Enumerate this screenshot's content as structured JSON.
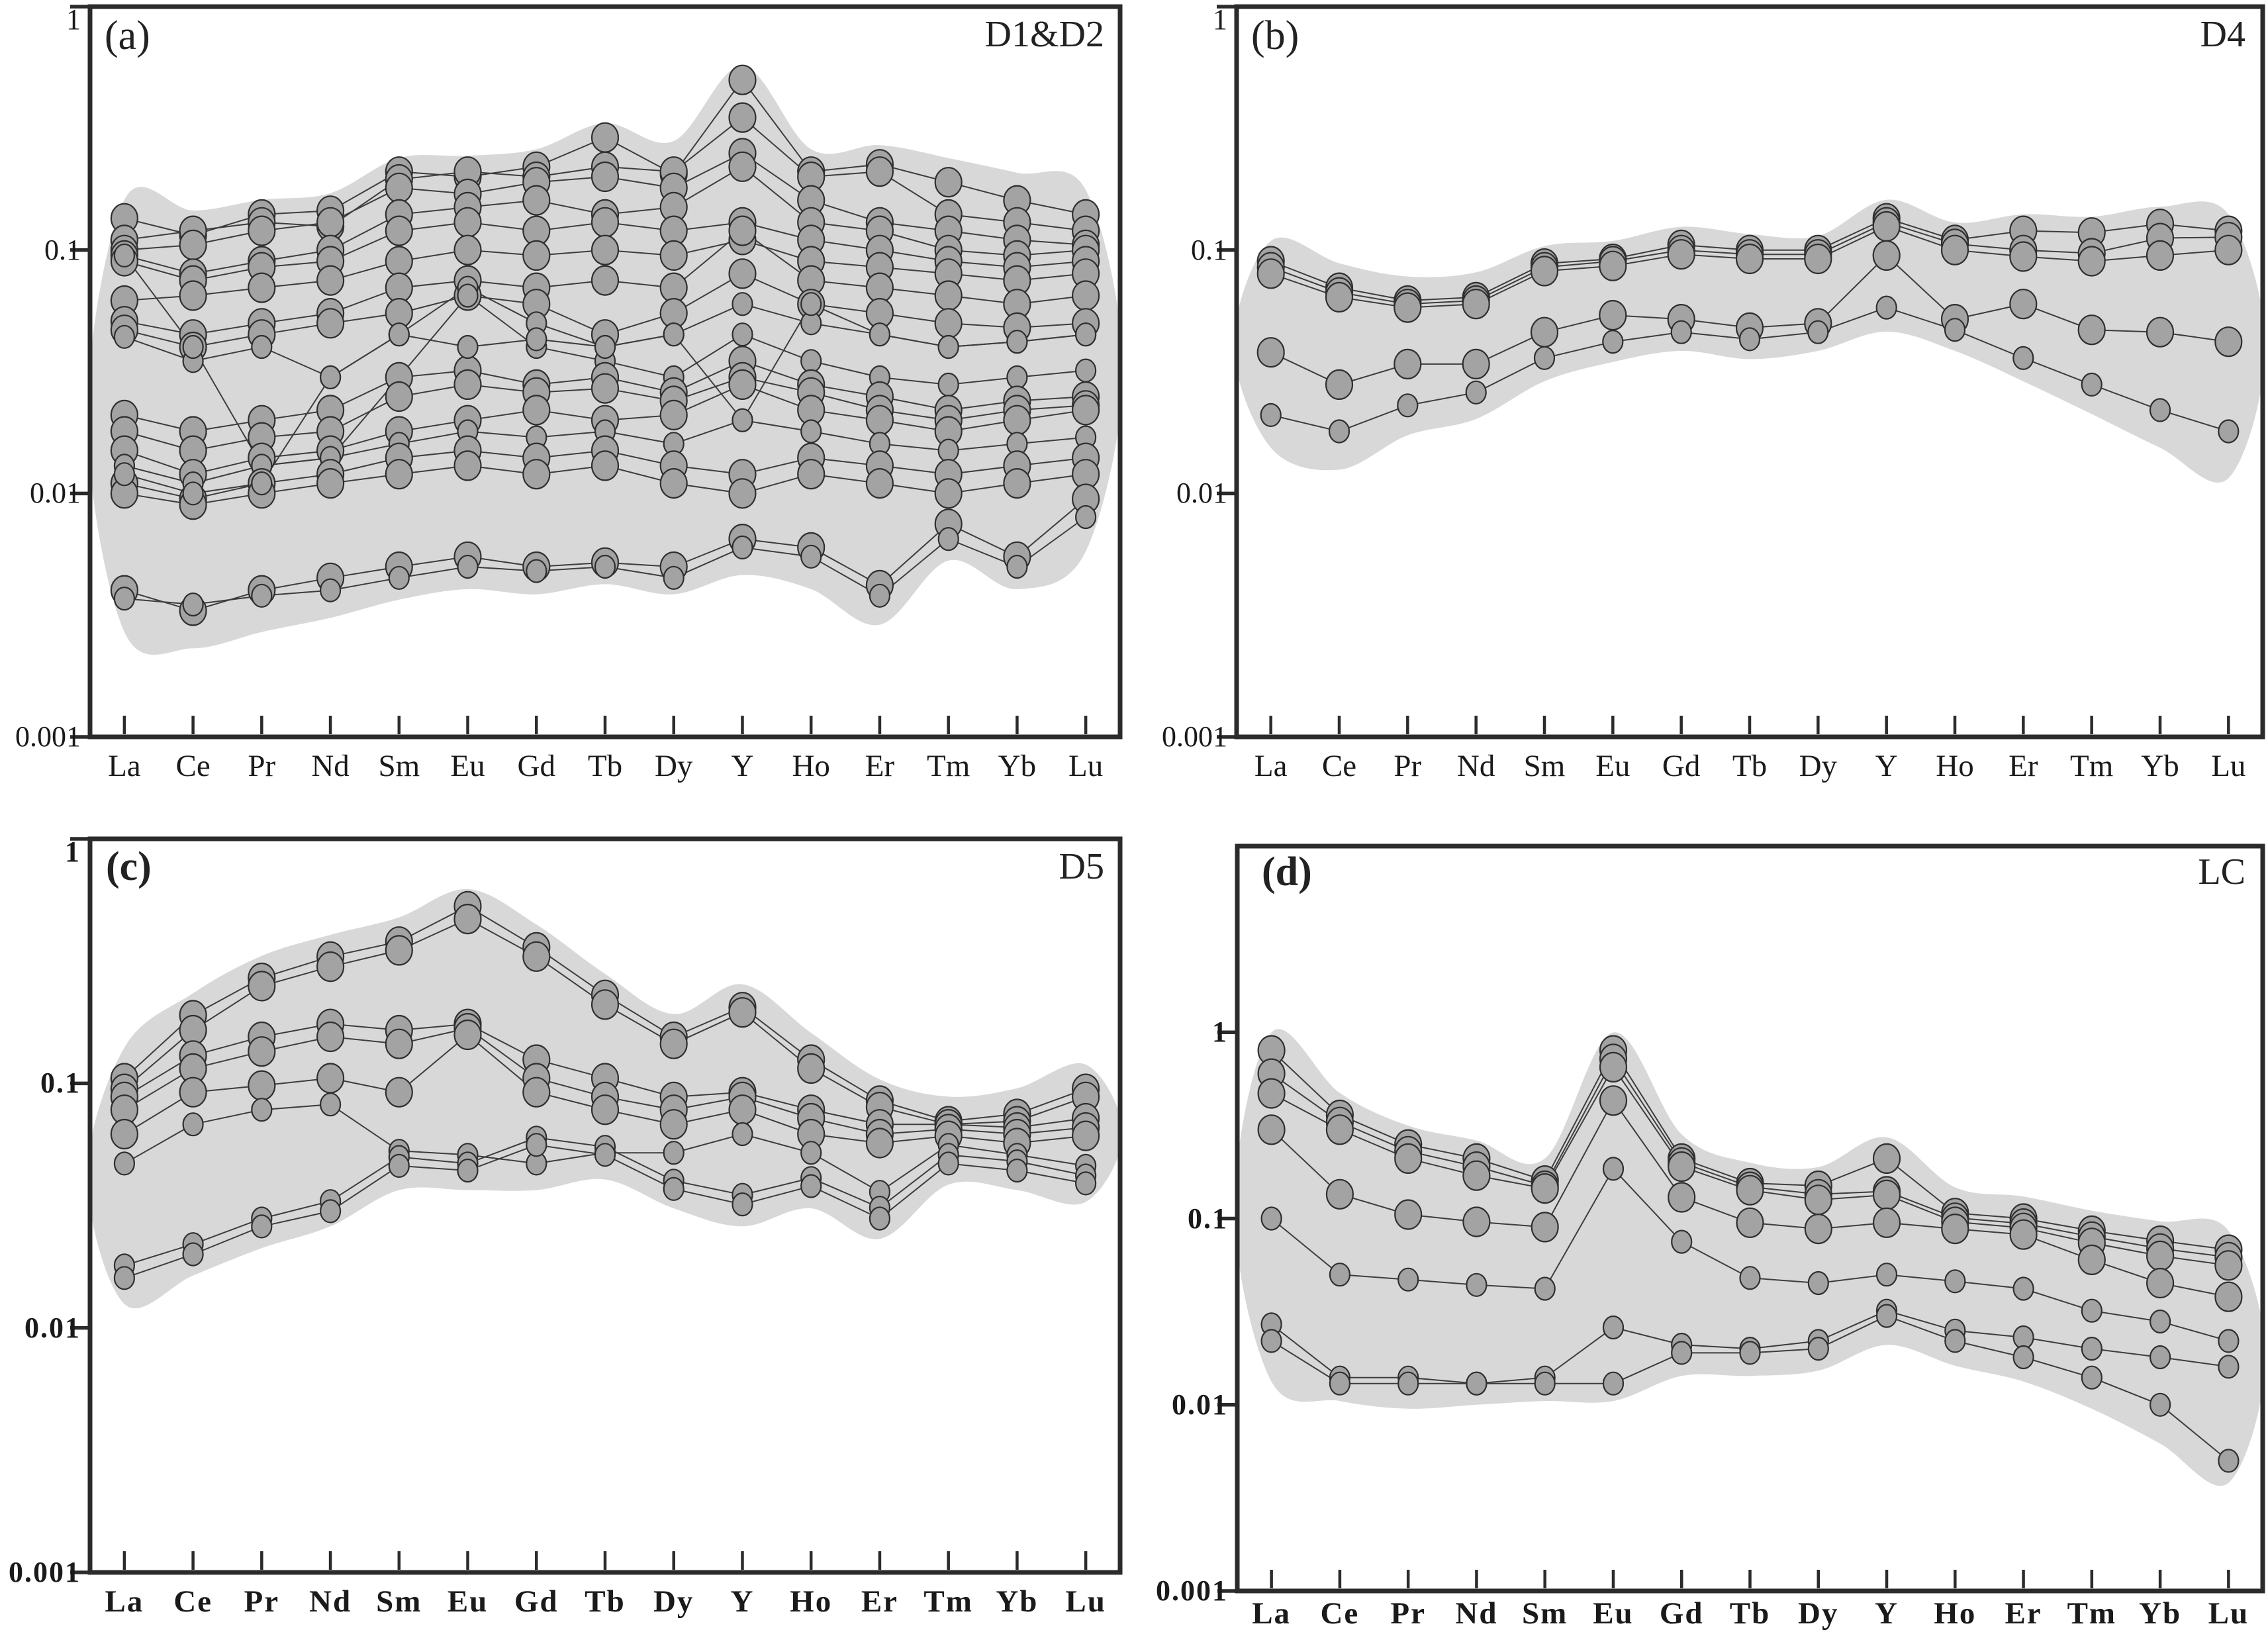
{
  "colors": {
    "background": "#ffffff",
    "envelope": "#d8d8d8",
    "marker_fill": "#a3a3a3",
    "marker_stroke": "#2f2f2f",
    "line": "#3d3d3d",
    "axis": "#2b2b2b",
    "text": "#1a1a1a"
  },
  "categories": [
    "La",
    "Ce",
    "Pr",
    "Nd",
    "Sm",
    "Eu",
    "Gd",
    "Tb",
    "Dy",
    "Y",
    "Ho",
    "Er",
    "Tm",
    "Yb",
    "Lu"
  ],
  "chart_data": [
    {
      "type": "line",
      "panel_letter": "(a)",
      "group_label": "D1&D2",
      "y_axis": {
        "scale": "log",
        "range_top": 1,
        "range_bottom": 0.001,
        "tick_values": [
          1,
          0.1,
          0.01,
          0.001
        ],
        "tick_labels": [
          "1",
          "0.1",
          "0.01",
          "0.001"
        ]
      },
      "envelope": {
        "upper": [
          0.155,
          0.14,
          0.155,
          0.165,
          0.23,
          0.235,
          0.25,
          0.32,
          0.27,
          0.55,
          0.25,
          0.26,
          0.23,
          0.2,
          0.17
        ],
        "lower": [
          0.0028,
          0.0024,
          0.0028,
          0.0032,
          0.0038,
          0.0042,
          0.004,
          0.0044,
          0.004,
          0.0048,
          0.0042,
          0.003,
          0.0055,
          0.0042,
          0.006
        ]
      },
      "series": [
        {
          "marker": "large",
          "values": [
            0.135,
            0.115,
            0.14,
            0.145,
            0.21,
            0.2,
            0.22,
            0.29,
            0.205,
            0.5,
            0.21,
            0.225,
            0.19,
            0.16,
            0.14
          ]
        },
        {
          "marker": "large",
          "values": [
            0.11,
            0.12,
            0.13,
            0.125,
            0.195,
            0.21,
            0.2,
            0.22,
            0.21,
            0.35,
            0.2,
            0.21,
            0.14,
            0.13,
            0.12
          ]
        },
        {
          "marker": "large",
          "values": [
            0.1,
            0.105,
            0.12,
            0.13,
            0.18,
            0.17,
            0.19,
            0.2,
            0.18,
            0.25,
            0.16,
            0.13,
            0.12,
            0.11,
            0.105
          ]
        },
        {
          "marker": "large",
          "values": [
            0.095,
            0.08,
            0.09,
            0.1,
            0.14,
            0.15,
            0.16,
            0.14,
            0.15,
            0.22,
            0.13,
            0.12,
            0.1,
            0.095,
            0.1
          ]
        },
        {
          "marker": "large",
          "values": [
            0.09,
            0.075,
            0.085,
            0.09,
            0.12,
            0.13,
            0.12,
            0.13,
            0.12,
            0.13,
            0.11,
            0.1,
            0.09,
            0.085,
            0.09
          ]
        },
        {
          "marker": "large",
          "values": [
            0.062,
            0.065,
            0.07,
            0.075,
            0.09,
            0.1,
            0.095,
            0.1,
            0.095,
            0.11,
            0.09,
            0.085,
            0.08,
            0.075,
            0.08
          ]
        },
        {
          "marker": "large",
          "values": [
            0.051,
            0.045,
            0.05,
            0.055,
            0.07,
            0.075,
            0.07,
            0.075,
            0.07,
            0.12,
            0.075,
            0.07,
            0.065,
            0.06,
            0.065
          ]
        },
        {
          "marker": "large",
          "values": [
            0.047,
            0.04,
            0.045,
            0.05,
            0.055,
            0.065,
            0.06,
            0.045,
            0.055,
            0.08,
            0.06,
            0.055,
            0.05,
            0.048,
            0.05
          ]
        },
        {
          "marker": "small",
          "values": [
            0.044,
            0.035,
            0.04,
            0.03,
            0.045,
            0.07,
            0.05,
            0.04,
            0.045,
            0.06,
            0.05,
            0.045,
            0.04,
            0.042,
            0.045
          ]
        },
        {
          "marker": "small",
          "values": [
            0.095,
            0.04,
            0.013,
            0.014,
            0.03,
            0.065,
            0.04,
            0.035,
            0.03,
            0.045,
            0.035,
            0.03,
            0.028,
            0.03,
            0.032
          ]
        },
        {
          "marker": "large",
          "values": [
            0.021,
            0.018,
            0.02,
            0.022,
            0.03,
            0.032,
            0.028,
            0.03,
            0.026,
            0.035,
            0.028,
            0.025,
            0.022,
            0.024,
            0.025
          ]
        },
        {
          "marker": "large",
          "values": [
            0.018,
            0.015,
            0.017,
            0.018,
            0.025,
            0.028,
            0.026,
            0.027,
            0.024,
            0.03,
            0.026,
            0.022,
            0.02,
            0.022,
            0.023
          ]
        },
        {
          "marker": "large",
          "values": [
            0.015,
            0.012,
            0.014,
            0.015,
            0.018,
            0.02,
            0.022,
            0.02,
            0.021,
            0.028,
            0.022,
            0.02,
            0.018,
            0.02,
            0.022
          ]
        },
        {
          "marker": "small",
          "values": [
            0.013,
            0.011,
            0.013,
            0.014,
            0.016,
            0.018,
            0.017,
            0.018,
            0.016,
            0.02,
            0.018,
            0.016,
            0.015,
            0.016,
            0.017
          ]
        },
        {
          "marker": "large",
          "values": [
            0.011,
            0.0095,
            0.011,
            0.012,
            0.014,
            0.015,
            0.014,
            0.015,
            0.013,
            0.012,
            0.014,
            0.013,
            0.012,
            0.013,
            0.014
          ]
        },
        {
          "marker": "large",
          "values": [
            0.01,
            0.009,
            0.01,
            0.011,
            0.012,
            0.013,
            0.012,
            0.013,
            0.011,
            0.01,
            0.012,
            0.011,
            0.01,
            0.011,
            0.012
          ]
        },
        {
          "marker": "small",
          "values": [
            0.012,
            0.01,
            0.011,
            0.03,
            0.045,
            0.04,
            0.043,
            0.04,
            0.045,
            0.02,
            0.06,
            0.045,
            0.04,
            0.042,
            0.045
          ]
        },
        {
          "marker": "large",
          "values": [
            0.004,
            0.0033,
            0.004,
            0.0045,
            0.005,
            0.0055,
            0.005,
            0.0052,
            0.005,
            0.0065,
            0.006,
            0.0042,
            0.0075,
            0.0055,
            0.0095
          ]
        },
        {
          "marker": "small",
          "values": [
            0.0037,
            0.0035,
            0.0038,
            0.004,
            0.0045,
            0.005,
            0.0048,
            0.005,
            0.0045,
            0.006,
            0.0055,
            0.0038,
            0.0065,
            0.005,
            0.008
          ]
        }
      ]
    },
    {
      "type": "line",
      "panel_letter": "(b)",
      "group_label": "D4",
      "y_axis": {
        "scale": "log",
        "range_top": 1,
        "range_bottom": 0.001,
        "tick_values": [
          1,
          0.1,
          0.01,
          0.001
        ],
        "tick_labels": [
          "1",
          "0.1",
          "0.01",
          "0.001"
        ]
      },
      "envelope": {
        "upper": [
          0.105,
          0.085,
          0.075,
          0.078,
          0.1,
          0.105,
          0.12,
          0.112,
          0.11,
          0.155,
          0.125,
          0.135,
          0.132,
          0.145,
          0.135
        ],
        "lower": [
          0.016,
          0.013,
          0.018,
          0.021,
          0.03,
          0.036,
          0.04,
          0.037,
          0.04,
          0.048,
          0.04,
          0.03,
          0.022,
          0.016,
          0.012
        ]
      },
      "series": [
        {
          "marker": "large",
          "values": [
            0.09,
            0.07,
            0.062,
            0.064,
            0.088,
            0.092,
            0.105,
            0.1,
            0.1,
            0.135,
            0.11,
            0.12,
            0.118,
            0.128,
            0.12
          ]
        },
        {
          "marker": "large",
          "values": [
            0.085,
            0.067,
            0.06,
            0.062,
            0.085,
            0.09,
            0.1,
            0.096,
            0.096,
            0.13,
            0.106,
            0.1,
            0.097,
            0.112,
            0.113
          ]
        },
        {
          "marker": "large",
          "values": [
            0.08,
            0.064,
            0.058,
            0.06,
            0.082,
            0.086,
            0.096,
            0.092,
            0.092,
            0.125,
            0.1,
            0.094,
            0.09,
            0.095,
            0.1
          ]
        },
        {
          "marker": "large",
          "values": [
            0.038,
            0.028,
            0.034,
            0.034,
            0.046,
            0.054,
            0.052,
            0.048,
            0.05,
            0.095,
            0.052,
            0.06,
            0.047,
            0.046,
            0.042
          ]
        },
        {
          "marker": "small",
          "values": [
            0.021,
            0.018,
            0.023,
            0.026,
            0.036,
            0.042,
            0.046,
            0.043,
            0.046,
            0.058,
            0.047,
            0.036,
            0.028,
            0.022,
            0.018
          ]
        }
      ]
    },
    {
      "type": "line",
      "panel_letter": "(c)",
      "group_label": "D5",
      "y_axis": {
        "scale": "log",
        "range_top": 1,
        "range_bottom": 0.001,
        "tick_values": [
          1,
          0.1,
          0.01,
          0.001
        ],
        "tick_labels": [
          "1",
          "0.1",
          "0.01",
          "0.001"
        ]
      },
      "envelope": {
        "upper": [
          0.135,
          0.225,
          0.32,
          0.39,
          0.46,
          0.6,
          0.43,
          0.27,
          0.185,
          0.245,
          0.155,
          0.1,
          0.085,
          0.092,
          0.115
        ],
        "lower": [
          0.013,
          0.017,
          0.022,
          0.027,
          0.038,
          0.038,
          0.038,
          0.042,
          0.032,
          0.027,
          0.032,
          0.024,
          0.04,
          0.038,
          0.034
        ]
      },
      "series": [
        {
          "marker": "large",
          "values": [
            0.105,
            0.19,
            0.27,
            0.33,
            0.38,
            0.53,
            0.36,
            0.23,
            0.155,
            0.205,
            0.125,
            0.085,
            0.07,
            0.075,
            0.095
          ]
        },
        {
          "marker": "large",
          "values": [
            0.095,
            0.165,
            0.25,
            0.3,
            0.35,
            0.47,
            0.33,
            0.21,
            0.145,
            0.195,
            0.115,
            0.08,
            0.068,
            0.07,
            0.088
          ]
        },
        {
          "marker": "large",
          "values": [
            0.088,
            0.13,
            0.155,
            0.175,
            0.165,
            0.175,
            0.125,
            0.105,
            0.088,
            0.092,
            0.078,
            0.068,
            0.068,
            0.066,
            0.072
          ]
        },
        {
          "marker": "large",
          "values": [
            0.078,
            0.115,
            0.135,
            0.155,
            0.145,
            0.168,
            0.105,
            0.088,
            0.078,
            0.088,
            0.072,
            0.062,
            0.065,
            0.062,
            0.066
          ]
        },
        {
          "marker": "large",
          "values": [
            0.062,
            0.092,
            0.098,
            0.105,
            0.092,
            0.158,
            0.092,
            0.078,
            0.068,
            0.078,
            0.062,
            0.057,
            0.061,
            0.057,
            0.061
          ]
        },
        {
          "marker": "small",
          "values": [
            0.047,
            0.068,
            0.078,
            0.082,
            0.053,
            0.051,
            0.047,
            0.052,
            0.052,
            0.062,
            0.052,
            0.036,
            0.056,
            0.051,
            0.046
          ]
        },
        {
          "marker": "small",
          "values": [
            0.018,
            0.022,
            0.028,
            0.033,
            0.05,
            0.047,
            0.06,
            0.055,
            0.04,
            0.035,
            0.041,
            0.031,
            0.051,
            0.048,
            0.042
          ]
        },
        {
          "marker": "small",
          "values": [
            0.016,
            0.02,
            0.026,
            0.03,
            0.046,
            0.044,
            0.056,
            0.051,
            0.037,
            0.032,
            0.038,
            0.028,
            0.047,
            0.044,
            0.039
          ]
        }
      ]
    },
    {
      "type": "line",
      "panel_letter": "(d)",
      "group_label": "LC",
      "y_axis": {
        "scale": "log",
        "range_top": 10,
        "range_bottom": 0.001,
        "tick_values": [
          1,
          0.1,
          0.01,
          0.001
        ],
        "tick_labels": [
          "1",
          "0.1",
          "0.01",
          "0.001"
        ]
      },
      "envelope": {
        "upper": [
          0.95,
          0.45,
          0.3,
          0.25,
          0.2,
          0.95,
          0.27,
          0.19,
          0.18,
          0.26,
          0.14,
          0.125,
          0.105,
          0.092,
          0.082
        ],
        "lower": [
          0.014,
          0.011,
          0.01,
          0.0105,
          0.011,
          0.011,
          0.015,
          0.015,
          0.016,
          0.022,
          0.017,
          0.014,
          0.01,
          0.0065,
          0.004
        ]
      },
      "series": [
        {
          "marker": "large",
          "values": [
            0.8,
            0.36,
            0.25,
            0.21,
            0.16,
            0.8,
            0.21,
            0.155,
            0.15,
            0.21,
            0.107,
            0.1,
            0.086,
            0.076,
            0.068
          ]
        },
        {
          "marker": "large",
          "values": [
            0.6,
            0.33,
            0.23,
            0.19,
            0.15,
            0.72,
            0.2,
            0.148,
            0.135,
            0.14,
            0.101,
            0.094,
            0.08,
            0.069,
            0.062
          ]
        },
        {
          "marker": "large",
          "values": [
            0.47,
            0.3,
            0.21,
            0.17,
            0.145,
            0.65,
            0.19,
            0.142,
            0.126,
            0.134,
            0.096,
            0.089,
            0.074,
            0.063,
            0.056
          ]
        },
        {
          "marker": "large",
          "values": [
            0.3,
            0.135,
            0.105,
            0.096,
            0.09,
            0.43,
            0.13,
            0.095,
            0.088,
            0.095,
            0.088,
            0.082,
            0.06,
            0.045,
            0.038
          ]
        },
        {
          "marker": "small",
          "values": [
            0.1,
            0.05,
            0.047,
            0.044,
            0.042,
            0.185,
            0.075,
            0.048,
            0.045,
            0.05,
            0.046,
            0.042,
            0.032,
            0.028,
            0.022
          ]
        },
        {
          "marker": "small",
          "values": [
            0.027,
            0.014,
            0.014,
            0.013,
            0.014,
            0.026,
            0.021,
            0.02,
            0.022,
            0.032,
            0.025,
            0.023,
            0.02,
            0.018,
            0.016
          ]
        },
        {
          "marker": "small",
          "values": [
            0.022,
            0.013,
            0.013,
            0.013,
            0.013,
            0.013,
            0.019,
            0.019,
            0.02,
            0.03,
            0.022,
            0.018,
            0.014,
            0.01,
            0.005
          ]
        }
      ]
    }
  ]
}
